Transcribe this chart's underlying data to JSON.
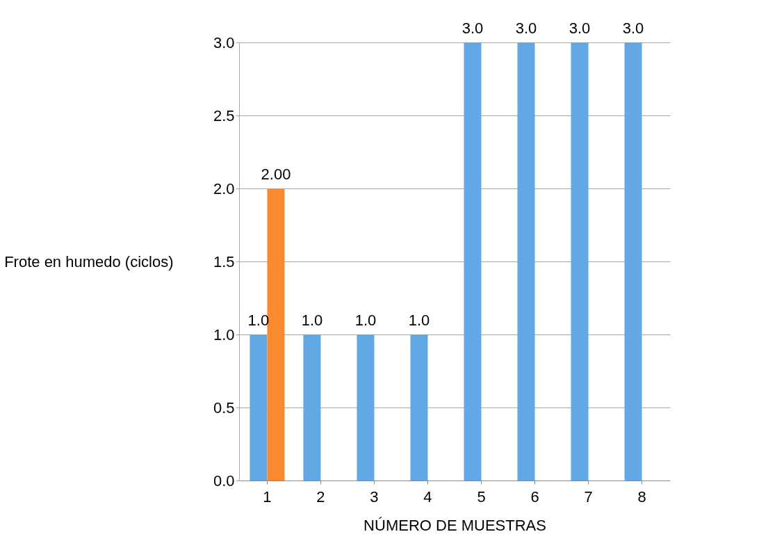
{
  "chart_data": {
    "type": "bar",
    "xlabel": "NÚMERO DE MUESTRAS",
    "ylabel": "Frote en humedo (ciclos)",
    "categories": [
      "1",
      "2",
      "3",
      "4",
      "5",
      "6",
      "7",
      "8"
    ],
    "series": [
      {
        "color": "#62a8e5",
        "values": [
          1,
          1,
          1,
          1,
          3,
          3,
          3,
          3
        ],
        "value_labels": [
          "1.0",
          "1.0",
          "1.0",
          "1.0",
          "3.0",
          "3.0",
          "3.0",
          "3.0"
        ]
      },
      {
        "color": "#f98a30",
        "values": [
          2,
          null,
          null,
          null,
          null,
          null,
          null,
          null
        ],
        "value_labels": [
          "2.00",
          null,
          null,
          null,
          null,
          null,
          null,
          null
        ]
      }
    ],
    "ylim": [
      0,
      3
    ],
    "yticks": [
      {
        "value": 0,
        "label": "0.0"
      },
      {
        "value": 0.5,
        "label": "0.5"
      },
      {
        "value": 1,
        "label": "1.0"
      },
      {
        "value": 1.5,
        "label": "1.5"
      },
      {
        "value": 2,
        "label": "2.0"
      },
      {
        "value": 2.5,
        "label": "2.5"
      },
      {
        "value": 3,
        "label": "3.0"
      }
    ],
    "grid": "y"
  }
}
